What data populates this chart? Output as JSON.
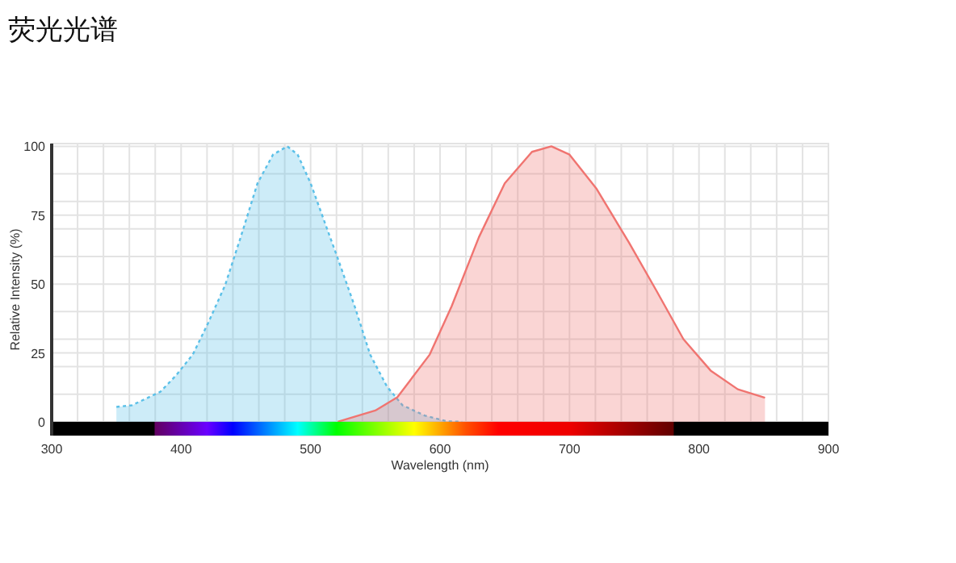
{
  "chart_data": {
    "type": "area",
    "title": "荧光光谱",
    "xlabel": "Wavelength (nm)",
    "ylabel": "Relative Intensity (%)",
    "xlim": [
      300,
      900
    ],
    "ylim": [
      -5,
      101
    ],
    "xticks": [
      300,
      {
        "value": 320,
        "label": null
      },
      {
        "value": 340,
        "label": null
      },
      {
        "value": 360,
        "label": null
      },
      {
        "value": 380,
        "label": null
      },
      400,
      {
        "value": 420,
        "label": null
      },
      {
        "value": 440,
        "label": null
      },
      {
        "value": 460,
        "label": null
      },
      {
        "value": 480,
        "label": null
      },
      500,
      {
        "value": 520,
        "label": null
      },
      {
        "value": 540,
        "label": null
      },
      {
        "value": 560,
        "label": null
      },
      {
        "value": 580,
        "label": null
      },
      600,
      {
        "value": 620,
        "label": null
      },
      {
        "value": 640,
        "label": null
      },
      {
        "value": 660,
        "label": null
      },
      {
        "value": 680,
        "label": null
      },
      700,
      {
        "value": 720,
        "label": null
      },
      {
        "value": 740,
        "label": null
      },
      {
        "value": 760,
        "label": null
      },
      {
        "value": 780,
        "label": null
      },
      800,
      {
        "value": 820,
        "label": null
      },
      {
        "value": 840,
        "label": null
      },
      {
        "value": 860,
        "label": null
      },
      {
        "value": 880,
        "label": null
      },
      900
    ],
    "yticks": [
      0,
      {
        "value": 10,
        "label": null
      },
      {
        "value": 20,
        "label": null
      },
      25,
      {
        "value": 30,
        "label": null
      },
      {
        "value": 40,
        "label": null
      },
      50,
      {
        "value": 60,
        "label": null
      },
      {
        "value": 70,
        "label": null
      },
      75,
      {
        "value": 80,
        "label": null
      },
      {
        "value": 90,
        "label": null
      },
      100
    ],
    "grid": true,
    "series": [
      {
        "color": "#5bc0e8",
        "line_style": "dotted",
        "x": [
          350,
          362,
          384,
          396,
          409,
          421,
          434,
          446,
          459,
          471,
          482,
          490,
          500,
          521,
          534,
          546,
          559,
          571,
          588,
          605,
          617
        ],
        "values": [
          5.4,
          6,
          10.9,
          16.8,
          24.4,
          36,
          49.6,
          67,
          86.6,
          97,
          100,
          97,
          86.6,
          59.3,
          42,
          24.4,
          12.8,
          6,
          2.3,
          0.2,
          0
        ]
      },
      {
        "color": "#f07470",
        "line_style": "solid",
        "x": [
          521,
          550,
          567,
          592,
          609,
          630,
          650,
          671,
          686,
          700,
          721,
          746,
          767,
          788,
          809,
          830,
          851
        ],
        "values": [
          0,
          4.1,
          8.9,
          24.4,
          42,
          67,
          86.6,
          98,
          100,
          97,
          84.5,
          65,
          47.7,
          30,
          18.6,
          11.8,
          8.7
        ]
      }
    ]
  }
}
